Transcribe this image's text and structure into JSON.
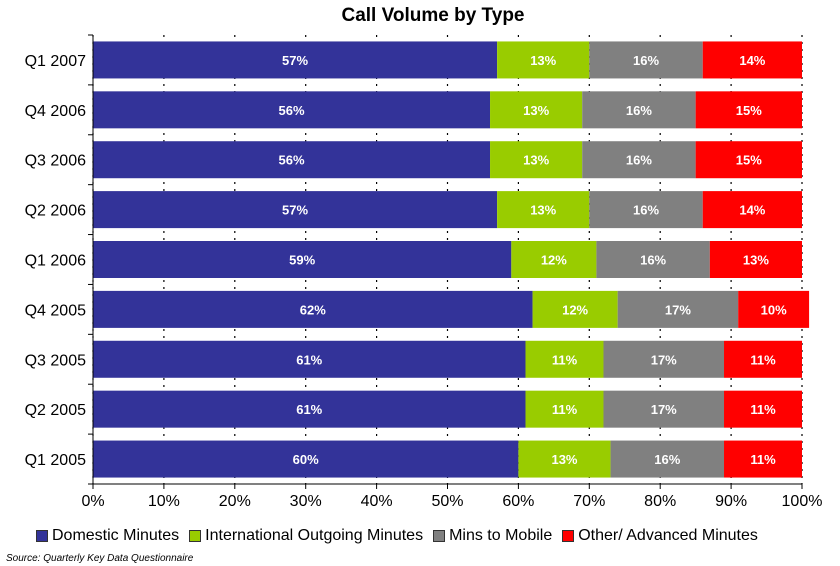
{
  "chart_data": {
    "type": "bar",
    "orientation": "horizontal",
    "stacked": true,
    "title": "Call Volume by Type",
    "categories": [
      "Q1 2007",
      "Q4 2006",
      "Q3 2006",
      "Q2 2006",
      "Q1 2006",
      "Q4 2005",
      "Q3 2005",
      "Q2 2005",
      "Q1 2005"
    ],
    "series": [
      {
        "name": "Domestic Minutes",
        "color": "#333399",
        "values": [
          57,
          56,
          56,
          57,
          59,
          62,
          61,
          61,
          60
        ]
      },
      {
        "name": "International Outgoing Minutes",
        "color": "#99CC00",
        "values": [
          13,
          13,
          13,
          13,
          12,
          12,
          11,
          11,
          13
        ]
      },
      {
        "name": "Mins to Mobile",
        "color": "#808080",
        "values": [
          16,
          16,
          16,
          16,
          16,
          17,
          17,
          17,
          16
        ]
      },
      {
        "name": "Other/ Advanced Minutes",
        "color": "#FF0000",
        "values": [
          14,
          15,
          15,
          14,
          13,
          10,
          11,
          11,
          11
        ]
      }
    ],
    "data_labels": [
      [
        "57%",
        "13%",
        "16%",
        "14%"
      ],
      [
        "56%",
        "13%",
        "16%",
        "15%"
      ],
      [
        "56%",
        "13%",
        "16%",
        "15%"
      ],
      [
        "57%",
        "13%",
        "16%",
        "14%"
      ],
      [
        "59%",
        "12%",
        "16%",
        "13%"
      ],
      [
        "62%",
        "12%",
        "17%",
        "10%"
      ],
      [
        "61%",
        "11%",
        "17%",
        "11%"
      ],
      [
        "61%",
        "11%",
        "17%",
        "11%"
      ],
      [
        "60%",
        "13%",
        "16%",
        "11%"
      ]
    ],
    "xlim": [
      0,
      100
    ],
    "xticks": [
      "0%",
      "10%",
      "20%",
      "30%",
      "40%",
      "50%",
      "60%",
      "70%",
      "80%",
      "90%",
      "100%"
    ],
    "grid": "vertical dotted",
    "legend_position": "bottom"
  },
  "source": "Source:  Quarterly Key Data Questionnaire"
}
